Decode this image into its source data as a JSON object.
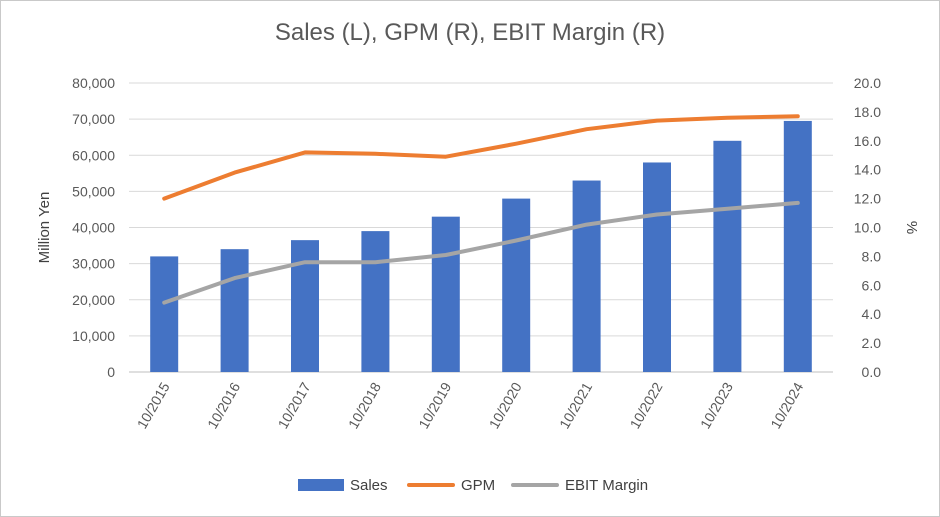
{
  "chart_data": {
    "type": "bar",
    "title": "Sales (L), GPM (R), EBIT Margin (R)",
    "categories": [
      "10/2015",
      "10/2016",
      "10/2017",
      "10/2018",
      "10/2019",
      "10/2020",
      "10/2021",
      "10/2022",
      "10/2023",
      "10/2024"
    ],
    "ylabel_left": "Million Yen",
    "ylabel_right": "%",
    "ylim_left": [
      0,
      80000
    ],
    "ylim_right": [
      0,
      20
    ],
    "yticks_left": [
      "0",
      "10,000",
      "20,000",
      "30,000",
      "40,000",
      "50,000",
      "60,000",
      "70,000",
      "80,000"
    ],
    "yticks_right": [
      "0.0",
      "2.0",
      "4.0",
      "6.0",
      "8.0",
      "10.0",
      "12.0",
      "14.0",
      "16.0",
      "18.0",
      "20.0"
    ],
    "grid": true,
    "legend_position": "bottom",
    "series": [
      {
        "name": "Sales",
        "type": "bar",
        "axis": "left",
        "color": "#4472C4",
        "values": [
          32000,
          34000,
          36500,
          39000,
          43000,
          48000,
          53000,
          58000,
          64000,
          69500
        ]
      },
      {
        "name": "GPM",
        "type": "line",
        "axis": "right",
        "color": "#ED7D31",
        "values": [
          12.0,
          13.8,
          15.2,
          15.1,
          14.9,
          15.8,
          16.8,
          17.4,
          17.6,
          17.7
        ]
      },
      {
        "name": "EBIT Margin",
        "type": "line",
        "axis": "right",
        "color": "#A5A5A5",
        "values": [
          4.8,
          6.5,
          7.6,
          7.6,
          8.1,
          9.1,
          10.2,
          10.9,
          11.3,
          11.7
        ]
      }
    ]
  }
}
